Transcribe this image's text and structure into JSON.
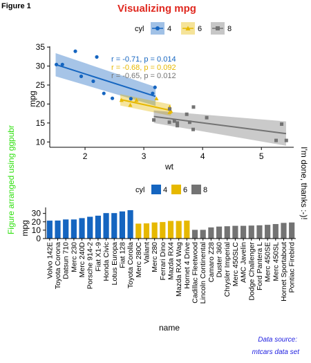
{
  "figure_label": "Figure 1",
  "title": "Visualizing mpg",
  "left_side_text": "Figure arranged using ggpubr",
  "right_side_text": "I'm done, thanks :-)!",
  "source_lines": [
    "Data source:",
    "mtcars data set"
  ],
  "colors": {
    "cyl4": "#1565c0",
    "cyl6": "#e6b800",
    "cyl8": "#737373",
    "title": "#e0281f",
    "left_text": "#2ee00e",
    "source": "#1d1de0"
  },
  "chart_data": [
    {
      "type": "scatter",
      "xlabel": "wt",
      "ylabel": "mpg",
      "xlim": [
        1.4,
        5.55
      ],
      "ylim": [
        8.6,
        35.2
      ],
      "xticks": [
        2,
        3,
        4,
        5
      ],
      "yticks": [
        10,
        15,
        20,
        25,
        30,
        35
      ],
      "legend": {
        "title": "cyl",
        "position": "top",
        "entries": [
          "4",
          "6",
          "8"
        ]
      },
      "grid": false,
      "series": [
        {
          "name": "4",
          "points": [
            [
              2.32,
              22.8
            ],
            [
              3.19,
              24.4
            ],
            [
              3.15,
              22.8
            ],
            [
              2.2,
              32.4
            ],
            [
              1.615,
              30.4
            ],
            [
              1.835,
              33.9
            ],
            [
              2.465,
              21.5
            ],
            [
              1.935,
              27.3
            ],
            [
              2.14,
              26.0
            ],
            [
              1.513,
              30.4
            ],
            [
              2.78,
              21.4
            ]
          ],
          "fit": {
            "x": [
              1.5,
              3.2
            ],
            "y": [
              30.4,
              22.0
            ],
            "ci_lower": [
              27.3,
              19.5
            ],
            "ci_upper": [
              33.4,
              24.5
            ]
          },
          "annotation": "r = -0.71, p = 0.014"
        },
        {
          "name": "6",
          "points": [
            [
              2.62,
              21.0
            ],
            [
              2.875,
              21.0
            ],
            [
              3.215,
              21.4
            ],
            [
              3.46,
              18.1
            ],
            [
              3.44,
              19.2
            ],
            [
              3.44,
              17.8
            ],
            [
              2.77,
              19.7
            ]
          ],
          "fit": {
            "x": [
              2.6,
              3.46
            ],
            "y": [
              21.2,
              18.3
            ],
            "ci_lower": [
              19.6,
              16.9
            ],
            "ci_upper": [
              22.6,
              19.9
            ]
          },
          "annotation": "r = -0.68, p = 0.092"
        },
        {
          "name": "8",
          "points": [
            [
              3.44,
              18.7
            ],
            [
              3.57,
              14.3
            ],
            [
              4.07,
              16.4
            ],
            [
              3.73,
              17.3
            ],
            [
              3.78,
              15.2
            ],
            [
              5.25,
              10.4
            ],
            [
              5.424,
              10.4
            ],
            [
              5.345,
              14.7
            ],
            [
              3.52,
              15.5
            ],
            [
              3.435,
              15.2
            ],
            [
              3.84,
              13.3
            ],
            [
              3.845,
              19.2
            ],
            [
              3.17,
              15.8
            ],
            [
              3.57,
              15.0
            ]
          ],
          "fit": {
            "x": [
              3.17,
              5.42
            ],
            "y": [
              16.7,
              12.2
            ],
            "ci_lower": [
              15.0,
              9.0
            ],
            "ci_upper": [
              18.3,
              15.4
            ]
          },
          "annotation": "r = -0.65, p = 0.012"
        }
      ]
    },
    {
      "type": "bar",
      "xlabel": "name",
      "ylabel": "mpg",
      "ylim": [
        0,
        35.5
      ],
      "yticks": [
        0,
        10,
        20,
        30
      ],
      "legend": {
        "title": "cyl",
        "position": "top",
        "entries": [
          "4",
          "6",
          "8"
        ]
      },
      "grid": false,
      "categories": [
        "Volvo 142E",
        "Toyota Corona",
        "Datsun 710",
        "Merc 230",
        "Merc 240D",
        "Porsche 914-2",
        "Fiat X1-9",
        "Honda Civic",
        "Lotus Europa",
        "Fiat 128",
        "Toyota Corolla",
        "Merc 280C",
        "Valiant",
        "Merc 280",
        "Ferrari Dino",
        "Mazda RX4",
        "Mazda RX4 Wag",
        "Hornet 4 Drive",
        "Cadillac Fleetwood",
        "Lincoln Continental",
        "Camaro Z28",
        "Duster 360",
        "Chrysler Imperial",
        "Merc 450SLC",
        "AMC Javelin",
        "Dodge Challenger",
        "Ford Pantera L",
        "Merc 450SE",
        "Merc 450SL",
        "Hornet Sportabout",
        "Pontiac Firebird"
      ],
      "values": [
        21.4,
        21.5,
        22.8,
        22.8,
        24.4,
        26.0,
        27.3,
        30.4,
        30.4,
        32.4,
        33.9,
        17.8,
        18.1,
        19.2,
        19.7,
        21.0,
        21.0,
        21.4,
        10.4,
        10.4,
        13.3,
        14.3,
        14.7,
        15.2,
        15.2,
        15.5,
        15.8,
        16.4,
        17.3,
        18.7,
        19.2
      ],
      "groups": [
        "4",
        "4",
        "4",
        "4",
        "4",
        "4",
        "4",
        "4",
        "4",
        "4",
        "4",
        "6",
        "6",
        "6",
        "6",
        "6",
        "6",
        "6",
        "8",
        "8",
        "8",
        "8",
        "8",
        "8",
        "8",
        "8",
        "8",
        "8",
        "8",
        "8",
        "8"
      ]
    }
  ]
}
